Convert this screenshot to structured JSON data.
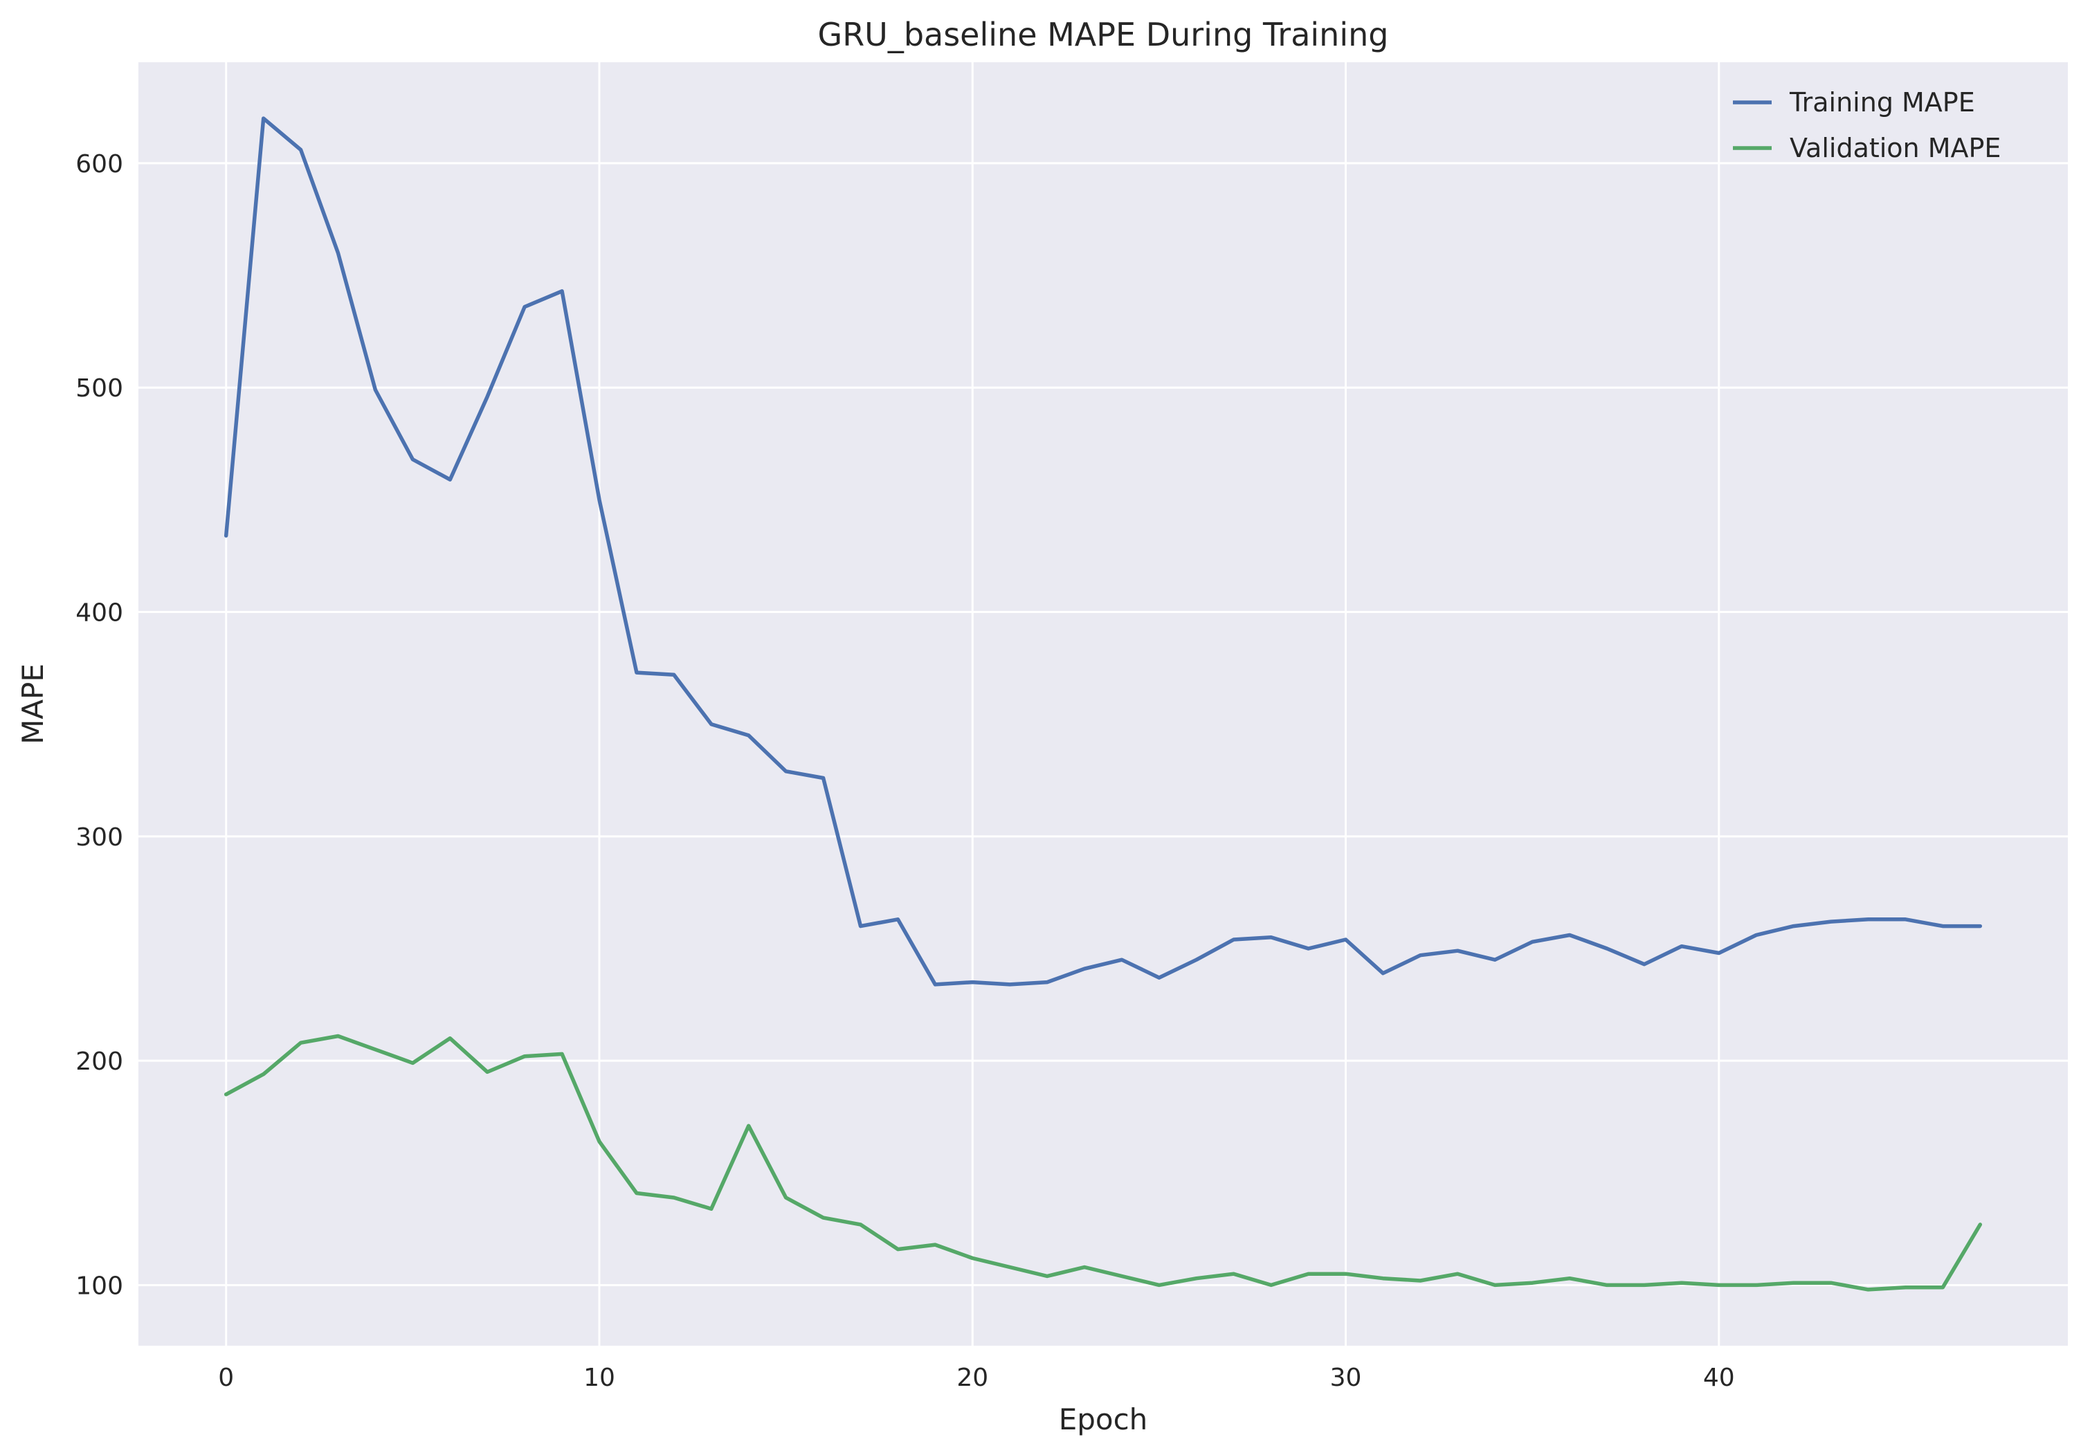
{
  "chart_data": {
    "type": "line",
    "title": "GRU_baseline MAPE During Training",
    "xlabel": "Epoch",
    "ylabel": "MAPE",
    "xlim": [
      -2.35,
      49.35
    ],
    "ylim": [
      73,
      645
    ],
    "xticks": [
      0,
      10,
      20,
      30,
      40
    ],
    "yticks": [
      100,
      200,
      300,
      400,
      500,
      600
    ],
    "grid": true,
    "legend_position": "top-right",
    "x": [
      0,
      1,
      2,
      3,
      4,
      5,
      6,
      7,
      8,
      9,
      10,
      11,
      12,
      13,
      14,
      15,
      16,
      17,
      18,
      19,
      20,
      21,
      22,
      23,
      24,
      25,
      26,
      27,
      28,
      29,
      30,
      31,
      32,
      33,
      34,
      35,
      36,
      37,
      38,
      39,
      40,
      41,
      42,
      43,
      44,
      45,
      46,
      47
    ],
    "series": [
      {
        "name": "Training MAPE",
        "color": "#4c72b0",
        "values": [
          434,
          620,
          606,
          560,
          499,
          468,
          459,
          496,
          536,
          543,
          450,
          373,
          372,
          350,
          345,
          329,
          326,
          260,
          263,
          234,
          235,
          234,
          235,
          241,
          245,
          237,
          245,
          254,
          255,
          250,
          254,
          239,
          247,
          249,
          245,
          253,
          256,
          250,
          243,
          251,
          248,
          256,
          260,
          262,
          263,
          263,
          260,
          260
        ]
      },
      {
        "name": "Validation MAPE",
        "color": "#55a868",
        "values": [
          185,
          194,
          208,
          211,
          205,
          199,
          210,
          195,
          202,
          203,
          164,
          141,
          139,
          134,
          171,
          139,
          130,
          127,
          116,
          118,
          112,
          108,
          104,
          108,
          104,
          100,
          103,
          105,
          100,
          105,
          105,
          103,
          102,
          105,
          100,
          101,
          103,
          100,
          100,
          101,
          100,
          100,
          101,
          101,
          98,
          99,
          99,
          127
        ]
      }
    ]
  }
}
